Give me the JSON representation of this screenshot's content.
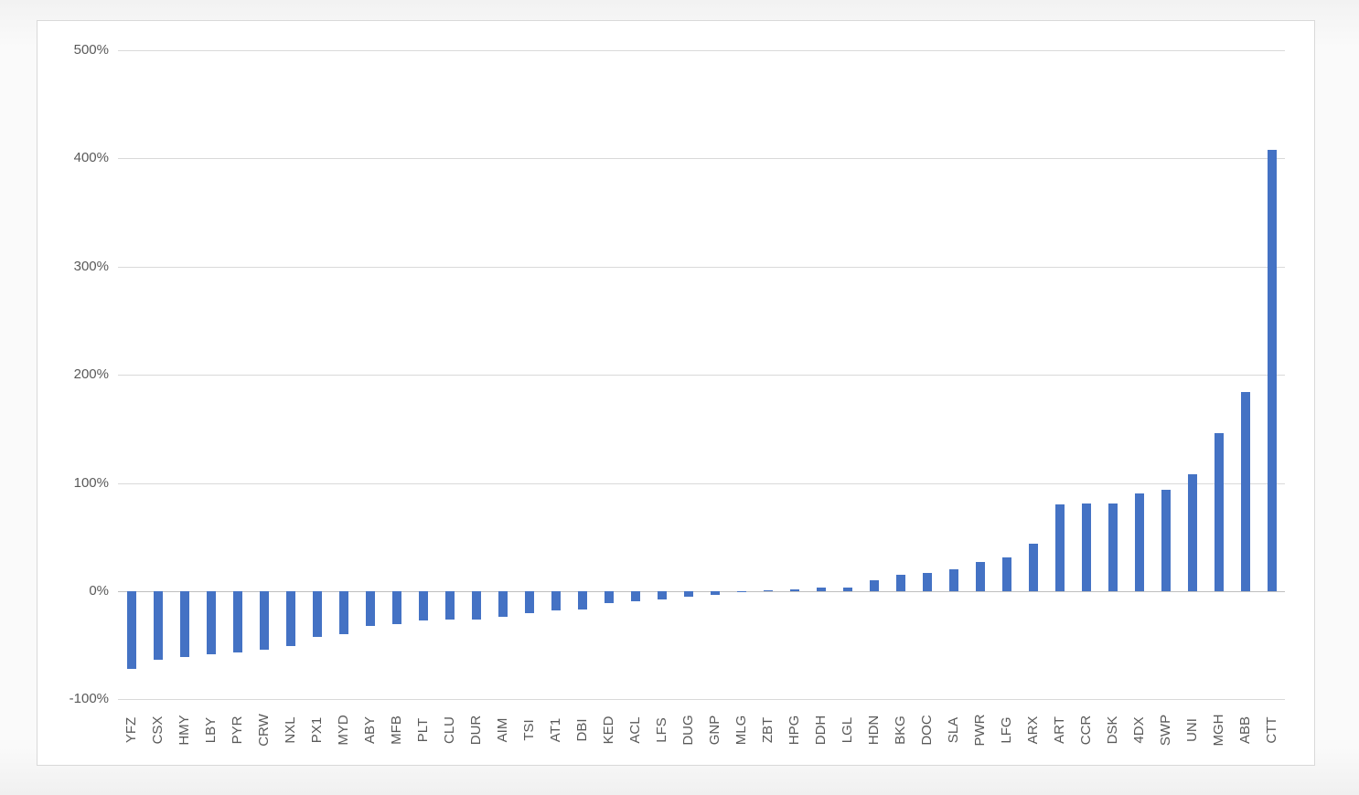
{
  "chart_data": {
    "type": "bar",
    "title": "",
    "xlabel": "",
    "ylabel": "",
    "categories": [
      "YFZ",
      "CSX",
      "HMY",
      "LBY",
      "PYR",
      "CRW",
      "NXL",
      "PX1",
      "MYD",
      "ABY",
      "MFB",
      "PLT",
      "CLU",
      "DUR",
      "AIM",
      "TSI",
      "AT1",
      "DBI",
      "KED",
      "ACL",
      "LFS",
      "DUG",
      "GNP",
      "MLG",
      "ZBT",
      "HPG",
      "DDH",
      "LGL",
      "HDN",
      "BKG",
      "DOC",
      "SLA",
      "PWR",
      "LFG",
      "ARX",
      "ART",
      "CCR",
      "DSK",
      "4DX",
      "SWP",
      "UNI",
      "MGH",
      "ABB",
      "CTT"
    ],
    "values": [
      -72,
      -63,
      -61,
      -58,
      -57,
      -54,
      -51,
      -42,
      -40,
      -32,
      -30,
      -27,
      -26,
      -26,
      -24,
      -20,
      -18,
      -17,
      -11,
      -9,
      -8,
      -5,
      -3,
      -1,
      1,
      2,
      3,
      3,
      10,
      15,
      17,
      20,
      27,
      31,
      44,
      80,
      81,
      81,
      90,
      94,
      108,
      146,
      184,
      408
    ],
    "value_unit": "%",
    "ylim": [
      -100,
      500
    ],
    "y_ticks": {
      "values": [
        500,
        400,
        300,
        200,
        100,
        0,
        -100
      ],
      "labels": [
        "500%",
        "400%",
        "300%",
        "200%",
        "100%",
        "0%",
        "-100%"
      ]
    },
    "grid": true,
    "legend": false,
    "sort_order": "ascending"
  },
  "colors": {
    "bar": "#4472C4",
    "gridline": "#d9d9d9",
    "zero_line": "#bfbfbf",
    "tick_label": "#595959",
    "chart_background": "#ffffff",
    "chart_border": "#d9d9d9",
    "page_background": "#f6f6f6"
  }
}
